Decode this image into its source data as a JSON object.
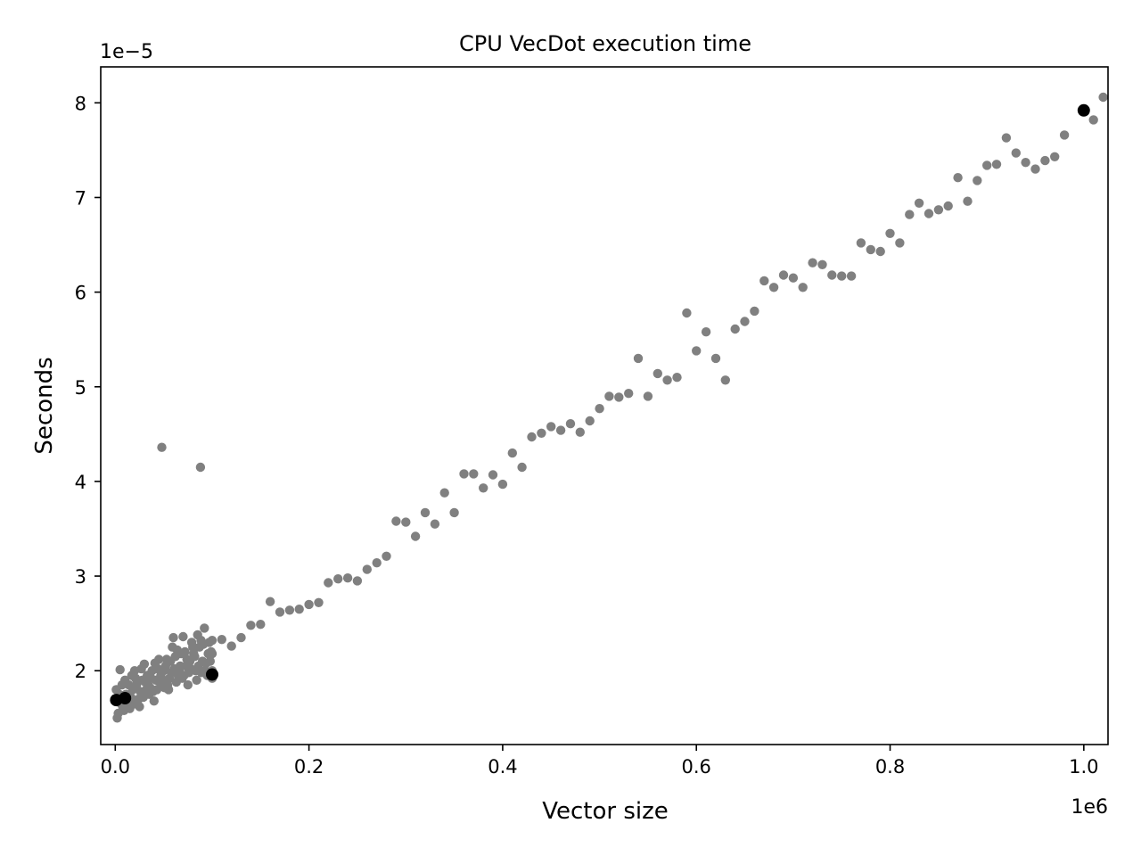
{
  "chart_data": {
    "type": "scatter",
    "title": "CPU VecDot execution time",
    "xlabel": "Vector size",
    "ylabel": "Seconds",
    "x_offset_label": "1e6",
    "y_offset_label": "1e−5",
    "xlim": [
      -15000,
      1025000
    ],
    "ylim": [
      1.22e-05,
      8.38e-05
    ],
    "x_ticks": [
      0,
      200000,
      400000,
      600000,
      800000,
      1000000
    ],
    "x_tick_labels": [
      "0.0",
      "0.2",
      "0.4",
      "0.6",
      "0.8",
      "1.0"
    ],
    "y_ticks": [
      2e-05,
      3e-05,
      4e-05,
      5e-05,
      6e-05,
      7e-05,
      8e-05
    ],
    "y_tick_labels": [
      "2",
      "3",
      "4",
      "5",
      "6",
      "7",
      "8"
    ],
    "grid": false,
    "colors": {
      "measurements": "#808080",
      "highlighted": "#000000"
    },
    "series": [
      {
        "points": [
          [
            110000,
            2.33e-05
          ],
          [
            120000,
            2.26e-05
          ],
          [
            130000,
            2.35e-05
          ],
          [
            140000,
            2.48e-05
          ],
          [
            150000,
            2.49e-05
          ],
          [
            160000,
            2.73e-05
          ],
          [
            170000,
            2.62e-05
          ],
          [
            180000,
            2.64e-05
          ],
          [
            190000,
            2.65e-05
          ],
          [
            200000,
            2.7e-05
          ],
          [
            210000,
            2.72e-05
          ],
          [
            220000,
            2.93e-05
          ],
          [
            230000,
            2.97e-05
          ],
          [
            240000,
            2.98e-05
          ],
          [
            250000,
            2.95e-05
          ],
          [
            260000,
            3.07e-05
          ],
          [
            270000,
            3.14e-05
          ],
          [
            280000,
            3.21e-05
          ],
          [
            290000,
            3.58e-05
          ],
          [
            300000,
            3.57e-05
          ],
          [
            310000,
            3.42e-05
          ],
          [
            320000,
            3.67e-05
          ],
          [
            330000,
            3.55e-05
          ],
          [
            340000,
            3.88e-05
          ],
          [
            350000,
            3.67e-05
          ],
          [
            360000,
            4.08e-05
          ],
          [
            370000,
            4.08e-05
          ],
          [
            380000,
            3.93e-05
          ],
          [
            390000,
            4.07e-05
          ],
          [
            400000,
            3.97e-05
          ],
          [
            410000,
            4.3e-05
          ],
          [
            420000,
            4.15e-05
          ],
          [
            430000,
            4.47e-05
          ],
          [
            440000,
            4.51e-05
          ],
          [
            450000,
            4.58e-05
          ],
          [
            460000,
            4.54e-05
          ],
          [
            470000,
            4.61e-05
          ],
          [
            480000,
            4.52e-05
          ],
          [
            490000,
            4.64e-05
          ],
          [
            500000,
            4.77e-05
          ],
          [
            510000,
            4.9e-05
          ],
          [
            520000,
            4.89e-05
          ],
          [
            530000,
            4.93e-05
          ],
          [
            540000,
            5.3e-05
          ],
          [
            550000,
            4.9e-05
          ],
          [
            560000,
            5.14e-05
          ],
          [
            570000,
            5.07e-05
          ],
          [
            580000,
            5.1e-05
          ],
          [
            590000,
            5.78e-05
          ],
          [
            600000,
            5.38e-05
          ],
          [
            610000,
            5.58e-05
          ],
          [
            620000,
            5.3e-05
          ],
          [
            630000,
            5.07e-05
          ],
          [
            640000,
            5.61e-05
          ],
          [
            650000,
            5.69e-05
          ],
          [
            660000,
            5.8e-05
          ],
          [
            670000,
            6.12e-05
          ],
          [
            680000,
            6.05e-05
          ],
          [
            690000,
            6.18e-05
          ],
          [
            700000,
            6.15e-05
          ],
          [
            710000,
            6.05e-05
          ],
          [
            720000,
            6.31e-05
          ],
          [
            730000,
            6.29e-05
          ],
          [
            740000,
            6.18e-05
          ],
          [
            750000,
            6.17e-05
          ],
          [
            760000,
            6.17e-05
          ],
          [
            770000,
            6.52e-05
          ],
          [
            780000,
            6.45e-05
          ],
          [
            790000,
            6.43e-05
          ],
          [
            800000,
            6.62e-05
          ],
          [
            810000,
            6.52e-05
          ],
          [
            820000,
            6.82e-05
          ],
          [
            830000,
            6.94e-05
          ],
          [
            840000,
            6.83e-05
          ],
          [
            850000,
            6.87e-05
          ],
          [
            860000,
            6.91e-05
          ],
          [
            870000,
            7.21e-05
          ],
          [
            880000,
            6.96e-05
          ],
          [
            890000,
            7.18e-05
          ],
          [
            900000,
            7.34e-05
          ],
          [
            910000,
            7.35e-05
          ],
          [
            920000,
            7.63e-05
          ],
          [
            930000,
            7.47e-05
          ],
          [
            940000,
            7.37e-05
          ],
          [
            950000,
            7.3e-05
          ],
          [
            960000,
            7.39e-05
          ],
          [
            970000,
            7.43e-05
          ],
          [
            980000,
            7.66e-05
          ],
          [
            1010000,
            7.82e-05
          ],
          [
            1020000,
            8.06e-05
          ],
          [
            48000,
            4.36e-05
          ],
          [
            88000,
            4.15e-05
          ],
          [
            5000,
            2.01e-05
          ],
          [
            2000,
            1.5e-05
          ],
          [
            3000,
            1.55e-05
          ],
          [
            92000,
            2.45e-05
          ],
          [
            85000,
            2.38e-05
          ],
          [
            70000,
            2.36e-05
          ],
          [
            60000,
            2.35e-05
          ],
          [
            45000,
            2.12e-05
          ],
          [
            30000,
            2.07e-05
          ],
          [
            20000,
            2e-05
          ],
          [
            10000,
            1.9e-05
          ],
          [
            15000,
            1.6e-05
          ],
          [
            40000,
            1.68e-05
          ],
          [
            55000,
            1.8e-05
          ],
          [
            75000,
            1.85e-05
          ],
          [
            95000,
            1.95e-05
          ],
          [
            25000,
            1.62e-05
          ],
          [
            8000,
            1.6e-05
          ],
          [
            35000,
            1.75e-05
          ],
          [
            65000,
            1.95e-05
          ],
          [
            80000,
            2.25e-05
          ],
          [
            50000,
            2e-05
          ],
          [
            12000,
            1.7e-05
          ],
          [
            18000,
            1.8e-05
          ],
          [
            22000,
            1.85e-05
          ],
          [
            28000,
            1.9e-05
          ],
          [
            33000,
            1.95e-05
          ],
          [
            38000,
            2e-05
          ],
          [
            42000,
            1.9e-05
          ],
          [
            47000,
            1.95e-05
          ],
          [
            52000,
            2.05e-05
          ],
          [
            57000,
            2.1e-05
          ],
          [
            62000,
            2.15e-05
          ],
          [
            67000,
            2.05e-05
          ],
          [
            72000,
            2.2e-05
          ],
          [
            77000,
            2.1e-05
          ],
          [
            82000,
            2.15e-05
          ],
          [
            87000,
            2.25e-05
          ],
          [
            90000,
            2.1e-05
          ],
          [
            97000,
            2.3e-05
          ],
          [
            99000,
            2.2e-05
          ],
          [
            4000,
            1.75e-05
          ],
          [
            6000,
            1.65e-05
          ],
          [
            16000,
            1.72e-05
          ],
          [
            26000,
            1.78e-05
          ],
          [
            36000,
            1.82e-05
          ],
          [
            46000,
            1.88e-05
          ],
          [
            56000,
            1.92e-05
          ],
          [
            66000,
            2e-05
          ],
          [
            76000,
            1.98e-05
          ],
          [
            86000,
            2.05e-05
          ],
          [
            94000,
            2.08e-05
          ],
          [
            14000,
            1.85e-05
          ],
          [
            24000,
            1.7e-05
          ],
          [
            34000,
            1.85e-05
          ],
          [
            44000,
            2.02e-05
          ],
          [
            54000,
            1.85e-05
          ],
          [
            64000,
            2.22e-05
          ],
          [
            74000,
            2.12e-05
          ],
          [
            84000,
            1.9e-05
          ],
          [
            93000,
            2e-05
          ],
          [
            1000,
            1.8e-05
          ],
          [
            9000,
            1.58e-05
          ],
          [
            19000,
            1.65e-05
          ],
          [
            29000,
            1.72e-05
          ],
          [
            39000,
            1.78e-05
          ],
          [
            49000,
            1.9e-05
          ],
          [
            59000,
            2.25e-05
          ],
          [
            69000,
            1.92e-05
          ],
          [
            79000,
            2.3e-05
          ],
          [
            89000,
            1.98e-05
          ],
          [
            98000,
            2.1e-05
          ],
          [
            11000,
            1.75e-05
          ],
          [
            21000,
            1.92e-05
          ],
          [
            31000,
            1.88e-05
          ],
          [
            41000,
            2.08e-05
          ],
          [
            51000,
            1.82e-05
          ],
          [
            61000,
            2.02e-05
          ],
          [
            71000,
            1.95e-05
          ],
          [
            81000,
            2.18e-05
          ],
          [
            91000,
            2.28e-05
          ],
          [
            7000,
            1.85e-05
          ],
          [
            17000,
            1.95e-05
          ],
          [
            27000,
            2.02e-05
          ],
          [
            37000,
            1.92e-05
          ],
          [
            43000,
            1.8e-05
          ],
          [
            53000,
            2.12e-05
          ],
          [
            63000,
            1.88e-05
          ],
          [
            73000,
            2.05e-05
          ],
          [
            83000,
            2e-05
          ],
          [
            96000,
            2.18e-05
          ],
          [
            13000,
            1.65e-05
          ],
          [
            23000,
            1.88e-05
          ],
          [
            32000,
            1.8e-05
          ],
          [
            58000,
            1.98e-05
          ],
          [
            68000,
            2.18e-05
          ],
          [
            78000,
            2.02e-05
          ],
          [
            88500,
            2.32e-05
          ],
          [
            100000,
            2e-05
          ],
          [
            100000,
            2.18e-05
          ],
          [
            100000,
            2.32e-05
          ],
          [
            100000,
            1.92e-05
          ]
        ]
      },
      {
        "points": [
          [
            1000,
            1.69e-05
          ],
          [
            10000,
            1.71e-05
          ],
          [
            100000,
            1.96e-05
          ],
          [
            1000000,
            7.92e-05
          ]
        ]
      }
    ]
  }
}
